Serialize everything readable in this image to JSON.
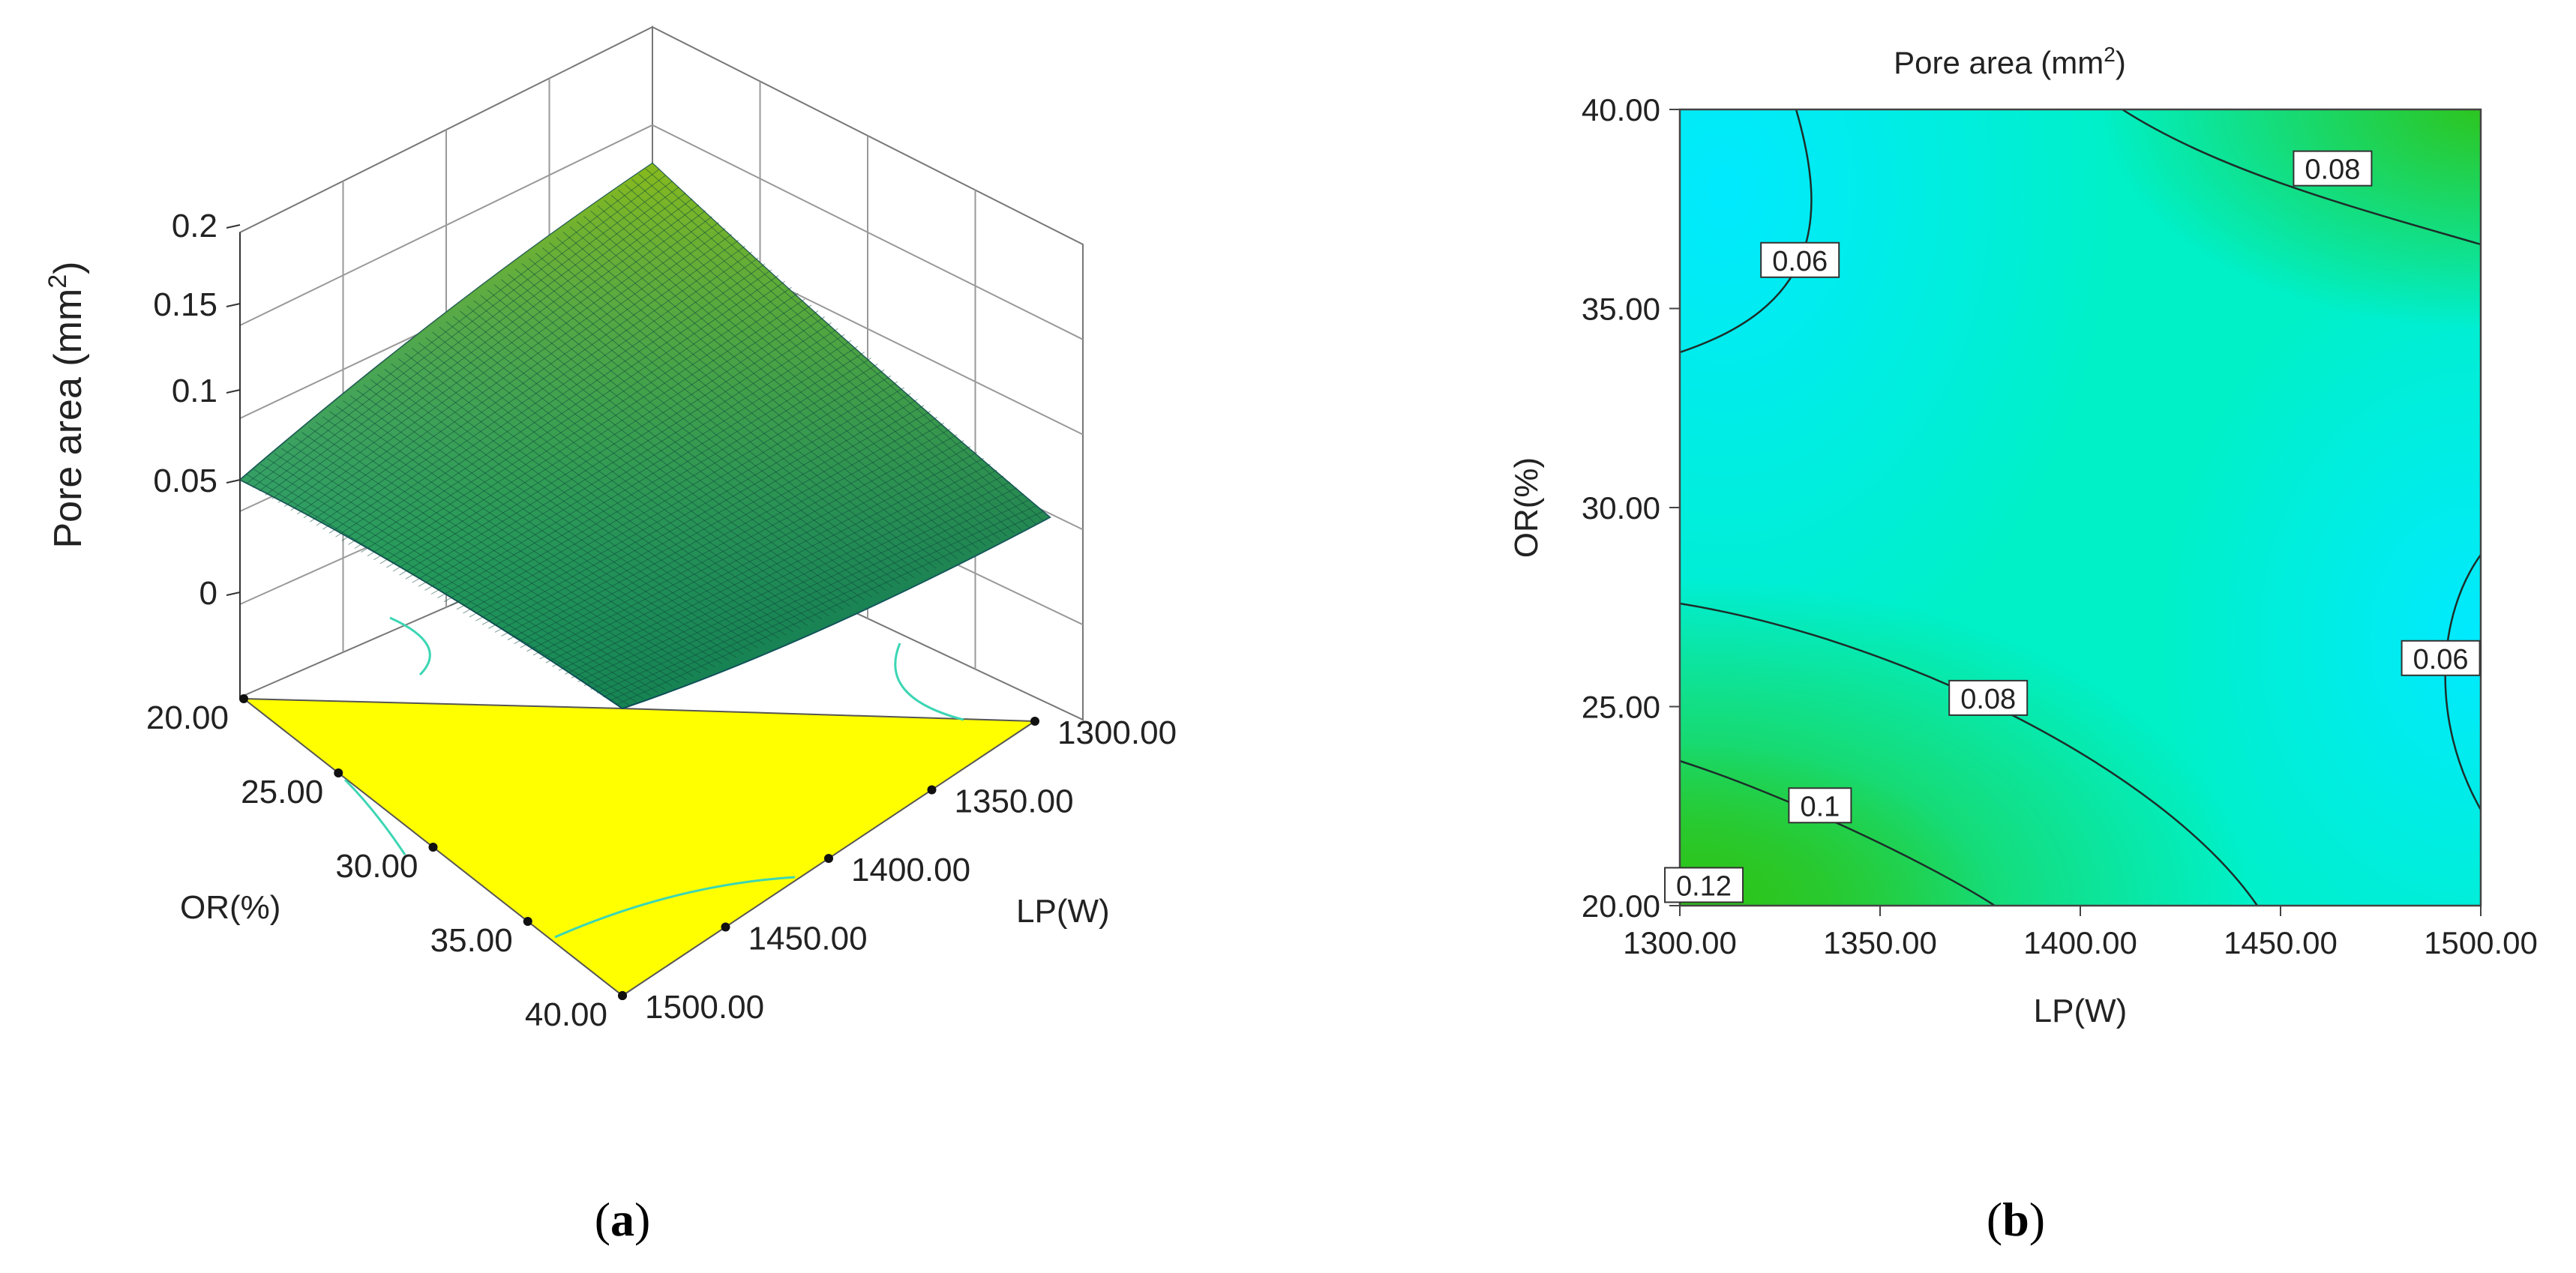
{
  "chart_data": [
    {
      "type": "surface",
      "panel_label": "(a)",
      "panel_letter": "a",
      "zlabel": "Pore area (mm",
      "zlabel_sup": "2",
      "zlabel_close": ")",
      "xlabel": "LP(W)",
      "ylabel": "OR(%)",
      "x_ticks": [
        "1300.00",
        "1350.00",
        "1400.00",
        "1450.00",
        "1500.00"
      ],
      "y_ticks": [
        "20.00",
        "25.00",
        "30.00",
        "35.00",
        "40.00"
      ],
      "z_ticks": [
        "0",
        "0.05",
        "0.1",
        "0.15",
        "0.2"
      ],
      "xlim": [
        1300,
        1500
      ],
      "ylim": [
        20,
        40
      ],
      "zlim": [
        0,
        0.2
      ],
      "corner_values": [
        {
          "LP": 1300,
          "OR": 20,
          "z": 0.125
        },
        {
          "LP": 1500,
          "OR": 20,
          "z": 0.055
        },
        {
          "LP": 1300,
          "OR": 40,
          "z": 0.05
        },
        {
          "LP": 1500,
          "OR": 40,
          "z": 0.083
        }
      ],
      "surface_colors": [
        "#1aa3a8",
        "#1f9a5a",
        "#7ab51e"
      ],
      "floor_color": "#ffff00",
      "grid": true
    },
    {
      "type": "contour",
      "panel_label": "(b)",
      "panel_letter": "b",
      "title": "Pore area (mm",
      "title_sup": "2",
      "title_close": ")",
      "xlabel": "LP(W)",
      "ylabel": "OR(%)",
      "x_ticks": [
        "1300.00",
        "1350.00",
        "1400.00",
        "1450.00",
        "1500.00"
      ],
      "y_ticks": [
        "20.00",
        "25.00",
        "30.00",
        "35.00",
        "40.00"
      ],
      "xlim": [
        1300,
        1500
      ],
      "ylim": [
        20,
        40
      ],
      "contour_labels": [
        {
          "label": "0.06",
          "LP": 1330,
          "OR": 36.2
        },
        {
          "label": "0.08",
          "LP": 1463,
          "OR": 38.5
        },
        {
          "label": "0.06",
          "LP": 1490,
          "OR": 26.2
        },
        {
          "label": "0.08",
          "LP": 1377,
          "OR": 25.2
        },
        {
          "label": "0.1",
          "LP": 1335,
          "OR": 22.5
        },
        {
          "label": "0.12",
          "LP": 1306,
          "OR": 20.5
        }
      ],
      "colormap": [
        "#00e5ff",
        "#00ff30",
        "#30c418"
      ]
    }
  ]
}
